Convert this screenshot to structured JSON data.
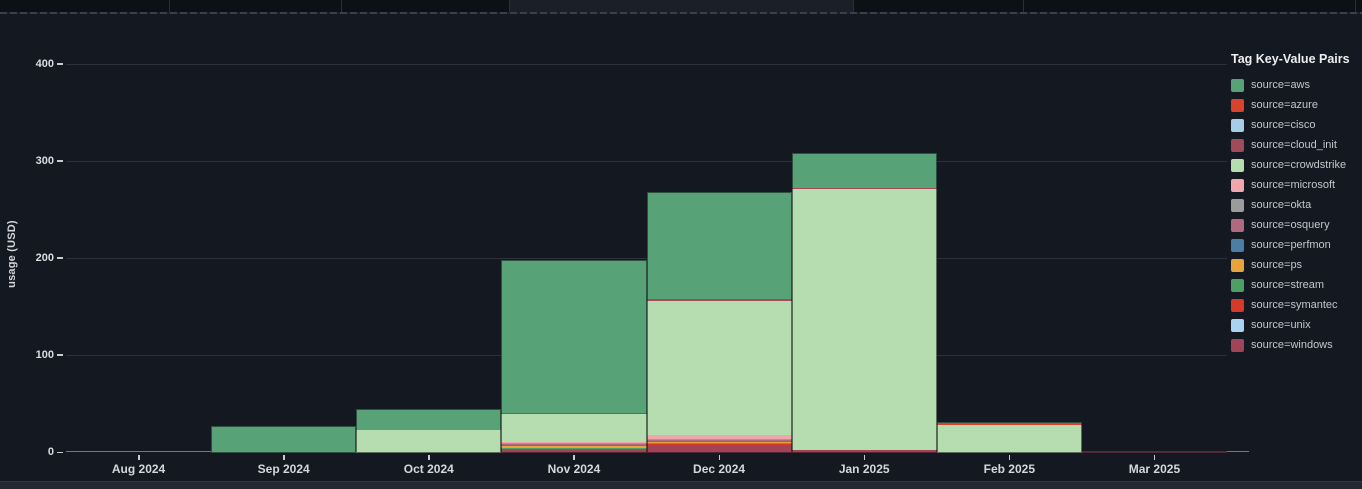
{
  "axis": {
    "y_title": "usage (USD)"
  },
  "legend": {
    "title": "Tag Key-Value Pairs"
  },
  "chart_data": {
    "type": "bar",
    "stacked": true,
    "title": "",
    "xlabel": "",
    "ylabel": "usage (USD)",
    "ylim": [
      0,
      400
    ],
    "y_ticks": [
      0,
      100,
      200,
      300,
      400
    ],
    "grid": true,
    "legend_title": "Tag Key-Value Pairs",
    "legend_position": "right",
    "stack_order_note": "series listed top-to-bottom as rendered in each bar (aws topmost, windows at baseline)",
    "categories": [
      "Aug 2024",
      "Sep 2024",
      "Oct 2024",
      "Nov 2024",
      "Dec 2024",
      "Jan 2025",
      "Feb 2025",
      "Mar 2025"
    ],
    "totals": [
      0,
      28,
      45,
      199,
      269,
      309,
      32,
      2
    ],
    "series": [
      {
        "name": "source=aws",
        "color": "#57a276",
        "values": [
          0,
          28,
          21,
          158,
          110,
          36,
          1,
          0
        ]
      },
      {
        "name": "source=azure",
        "color": "#d9432e",
        "values": [
          0,
          0,
          0,
          0,
          0,
          0,
          2,
          1
        ]
      },
      {
        "name": "source=cisco",
        "color": "#a7cce7",
        "values": [
          0,
          0,
          0,
          0,
          0,
          0,
          0,
          0
        ]
      },
      {
        "name": "source=cloud_init",
        "color": "#a04a5a",
        "values": [
          0,
          0,
          0,
          1,
          2,
          1,
          0,
          1
        ]
      },
      {
        "name": "source=crowdstrike",
        "color": "#b5ddb0",
        "values": [
          0,
          0,
          24,
          29,
          139,
          269,
          29,
          0
        ]
      },
      {
        "name": "source=microsoft",
        "color": "#efa7ad",
        "values": [
          0,
          0,
          0,
          1,
          4,
          0,
          0,
          0
        ]
      },
      {
        "name": "source=okta",
        "color": "#9b9b9b",
        "values": [
          0,
          0,
          0,
          1,
          1,
          0,
          0,
          0
        ]
      },
      {
        "name": "source=osquery",
        "color": "#ae6b80",
        "values": [
          0,
          0,
          0,
          1,
          1,
          0,
          0,
          0
        ]
      },
      {
        "name": "source=perfmon",
        "color": "#4a7ea3",
        "values": [
          0,
          0,
          0,
          1,
          1,
          0,
          0,
          0
        ]
      },
      {
        "name": "source=ps",
        "color": "#e7a33c",
        "values": [
          0,
          0,
          0,
          2,
          1,
          0,
          0,
          0
        ]
      },
      {
        "name": "source=stream",
        "color": "#4d9f63",
        "values": [
          0,
          0,
          0,
          1,
          1,
          0,
          0,
          0
        ]
      },
      {
        "name": "source=symantec",
        "color": "#d63b2a",
        "values": [
          0,
          0,
          0,
          1,
          1,
          0,
          0,
          0
        ]
      },
      {
        "name": "source=unix",
        "color": "#a9d3ee",
        "values": [
          0,
          0,
          0,
          0,
          0,
          0,
          0,
          0
        ]
      },
      {
        "name": "source=windows",
        "color": "#a24458",
        "values": [
          0,
          0,
          0,
          3,
          8,
          3,
          0,
          0
        ]
      }
    ]
  }
}
